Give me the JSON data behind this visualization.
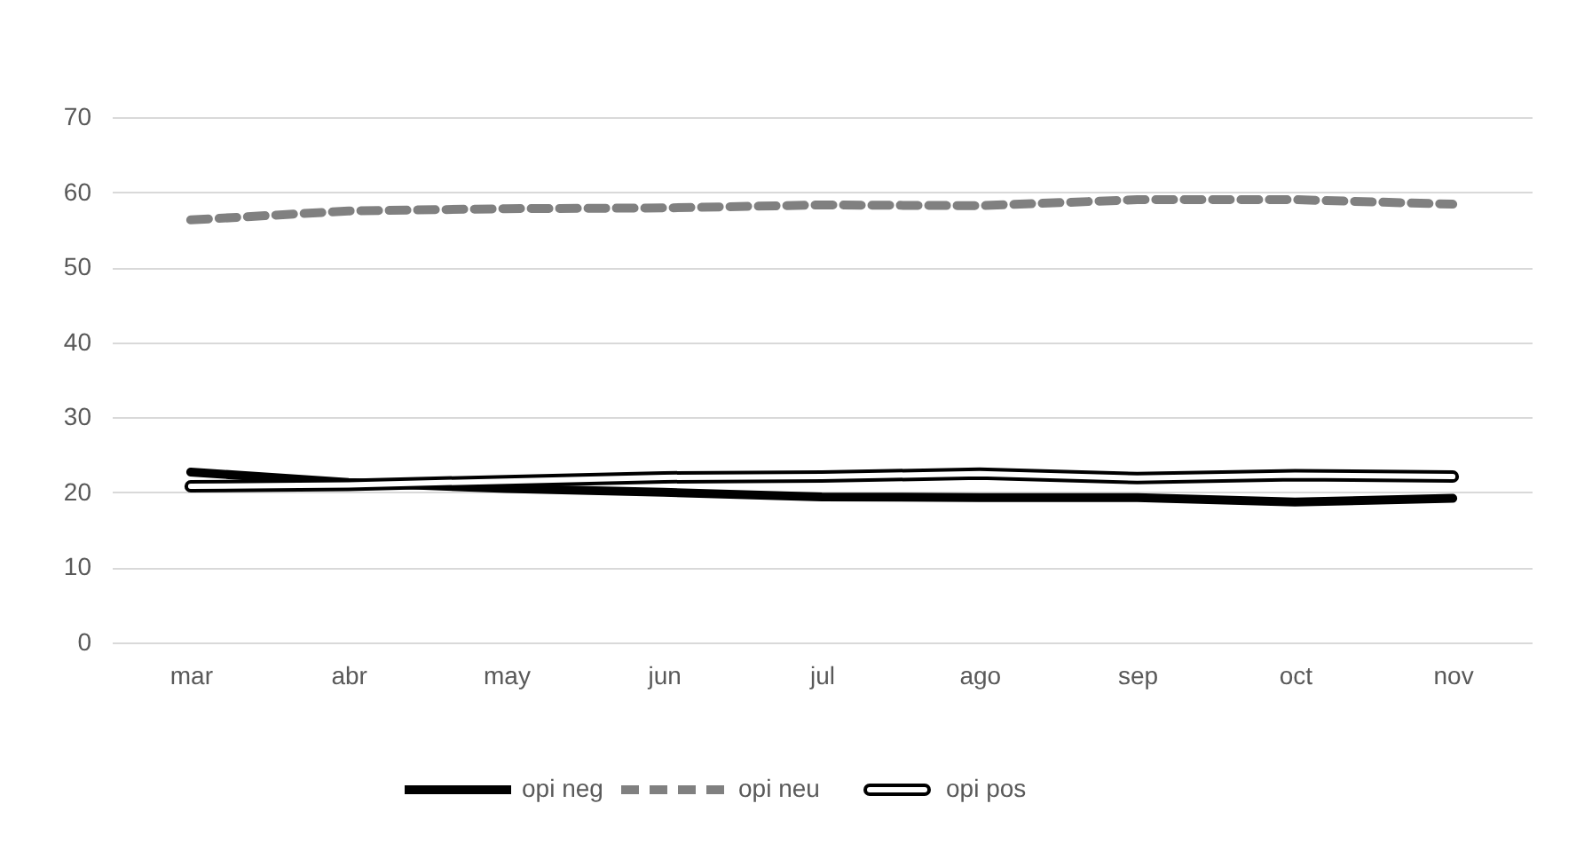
{
  "chart_data": {
    "type": "line",
    "categories": [
      "mar",
      "abr",
      "may",
      "jun",
      "jul",
      "ago",
      "sep",
      "oct",
      "nov"
    ],
    "series": [
      {
        "name": "opi neg",
        "color": "#000000",
        "line_style": "solid",
        "values": [
          22.7,
          21.3,
          20.5,
          20.0,
          19.4,
          19.3,
          19.3,
          18.7,
          19.2
        ]
      },
      {
        "name": "opi neu",
        "color": "#808080",
        "line_style": "dashed",
        "values": [
          56.3,
          57.5,
          57.8,
          57.9,
          58.3,
          58.2,
          59.0,
          59.0,
          58.4
        ]
      },
      {
        "name": "opi pos",
        "color": "#000000",
        "line_style": "solid",
        "values": [
          20.8,
          21.0,
          21.5,
          22.0,
          22.1,
          22.5,
          21.9,
          22.3,
          22.1
        ]
      }
    ],
    "ylim": [
      0,
      70
    ],
    "yticks": [
      0,
      10,
      20,
      30,
      40,
      50,
      60,
      70
    ],
    "grid": "y",
    "legend": "bottom",
    "marker": "none"
  }
}
